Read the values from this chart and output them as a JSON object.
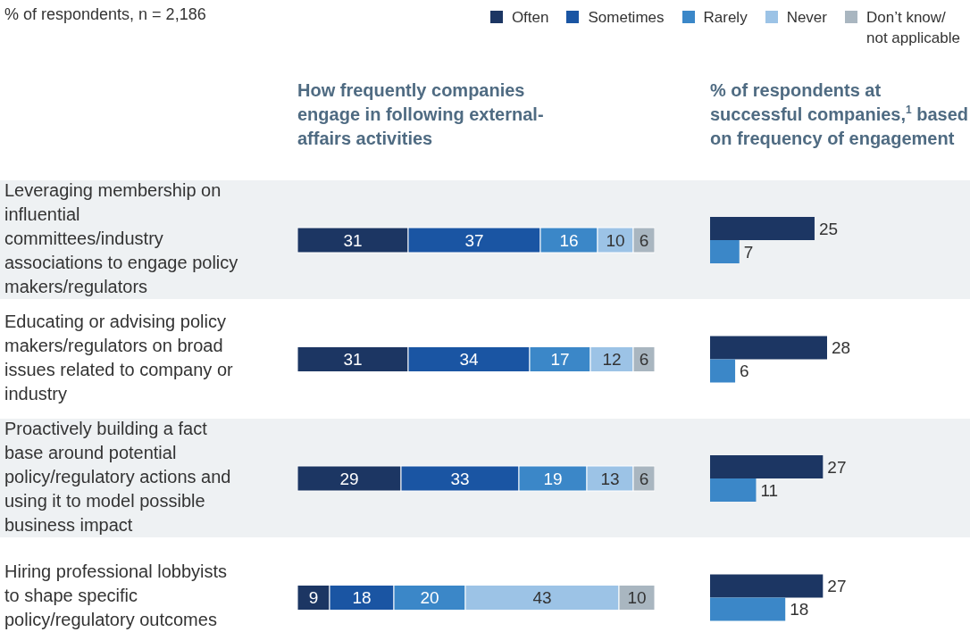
{
  "chart_data": [
    {
      "type": "bar",
      "orientation": "horizontal",
      "stacked": true,
      "title": "How frequently companies engage in following external-affairs activities",
      "annotations": [
        "% of respondents, n = 2,186"
      ],
      "categories": [
        "Leveraging membership on influential committees/industry associations to engage policy makers/regulators",
        "Educating or advising policy makers/regulators on broad issues related to company or industry",
        "Proactively building a fact base around potential policy/regulatory actions and using it to model possible business impact",
        "Hiring professional lobbyists to shape specific policy/regulatory outcomes"
      ],
      "series": [
        {
          "name": "Often",
          "color": "#1c3663",
          "values": [
            31,
            31,
            29,
            9
          ]
        },
        {
          "name": "Sometimes",
          "color": "#1a55a3",
          "values": [
            37,
            34,
            33,
            18
          ]
        },
        {
          "name": "Rarely",
          "color": "#3b87c8",
          "values": [
            16,
            17,
            19,
            20
          ]
        },
        {
          "name": "Never",
          "color": "#9cc3e6",
          "values": [
            10,
            12,
            13,
            43
          ]
        },
        {
          "name": "Don’t know/ not applicable",
          "color": "#a9b6c0",
          "values": [
            6,
            6,
            6,
            10
          ]
        }
      ],
      "xlim": [
        0,
        100
      ],
      "data_labels": true,
      "legend": "top right",
      "tick_labels": "y"
    },
    {
      "type": "bar",
      "orientation": "horizontal",
      "title": "% of respondents at successful companies,$^{1}$ based on frequency of engagement",
      "categories": [
        null,
        null,
        null,
        null
      ],
      "series": [
        {
          "color": "#1c3663",
          "values": [
            25,
            28,
            27,
            27
          ]
        },
        {
          "color": "#3b87c8",
          "values": [
            7,
            6,
            11,
            18
          ]
        }
      ],
      "data_labels": true,
      "tick_labels": false
    }
  ]
}
